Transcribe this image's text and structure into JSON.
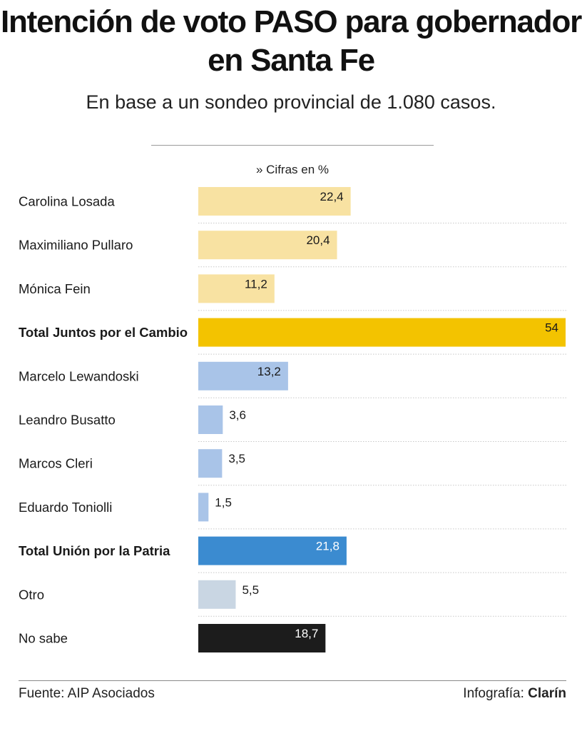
{
  "title": "Intención de voto PASO para gobernador en Santa Fe",
  "subtitle": "En base a un sondeo provincial de 1.080 casos.",
  "unit_note": "» Cifras en %",
  "footer": {
    "source": "Fuente: AIP Asociados",
    "credit_prefix": "Infografía: ",
    "credit_brand": "Clarín"
  },
  "colors": {
    "jxc_candidate": "#f8e2a2",
    "jxc_total": "#f3c300",
    "up_candidate": "#a9c4e8",
    "up_total": "#3b8bd0",
    "otro": "#c9d6e3",
    "no_sabe": "#1c1c1c"
  },
  "chart_data": {
    "type": "bar",
    "orientation": "horizontal",
    "xlim": [
      0,
      54
    ],
    "grid": false,
    "categories": [
      "Carolina Losada",
      "Maximiliano Pullaro",
      "Mónica Fein",
      "Total Juntos por el Cambio",
      "Marcelo Lewandoski",
      "Leandro Busatto",
      "Marcos Cleri",
      "Eduardo Toniolli",
      "Total Unión por la Patria",
      "Otro",
      "No sabe"
    ],
    "values": [
      22.4,
      20.4,
      11.2,
      54,
      13.2,
      3.6,
      3.5,
      1.5,
      21.8,
      5.5,
      18.7
    ],
    "value_labels": [
      "22,4",
      "20,4",
      "11,2",
      "54",
      "13,2",
      "3,6",
      "3,5",
      "1,5",
      "21,8",
      "5,5",
      "18,7"
    ],
    "bold": [
      false,
      false,
      false,
      true,
      false,
      false,
      false,
      false,
      true,
      false,
      false
    ],
    "bar_colors": [
      "jxc_candidate",
      "jxc_candidate",
      "jxc_candidate",
      "jxc_total",
      "up_candidate",
      "up_candidate",
      "up_candidate",
      "up_candidate",
      "up_total",
      "otro",
      "no_sabe"
    ]
  }
}
